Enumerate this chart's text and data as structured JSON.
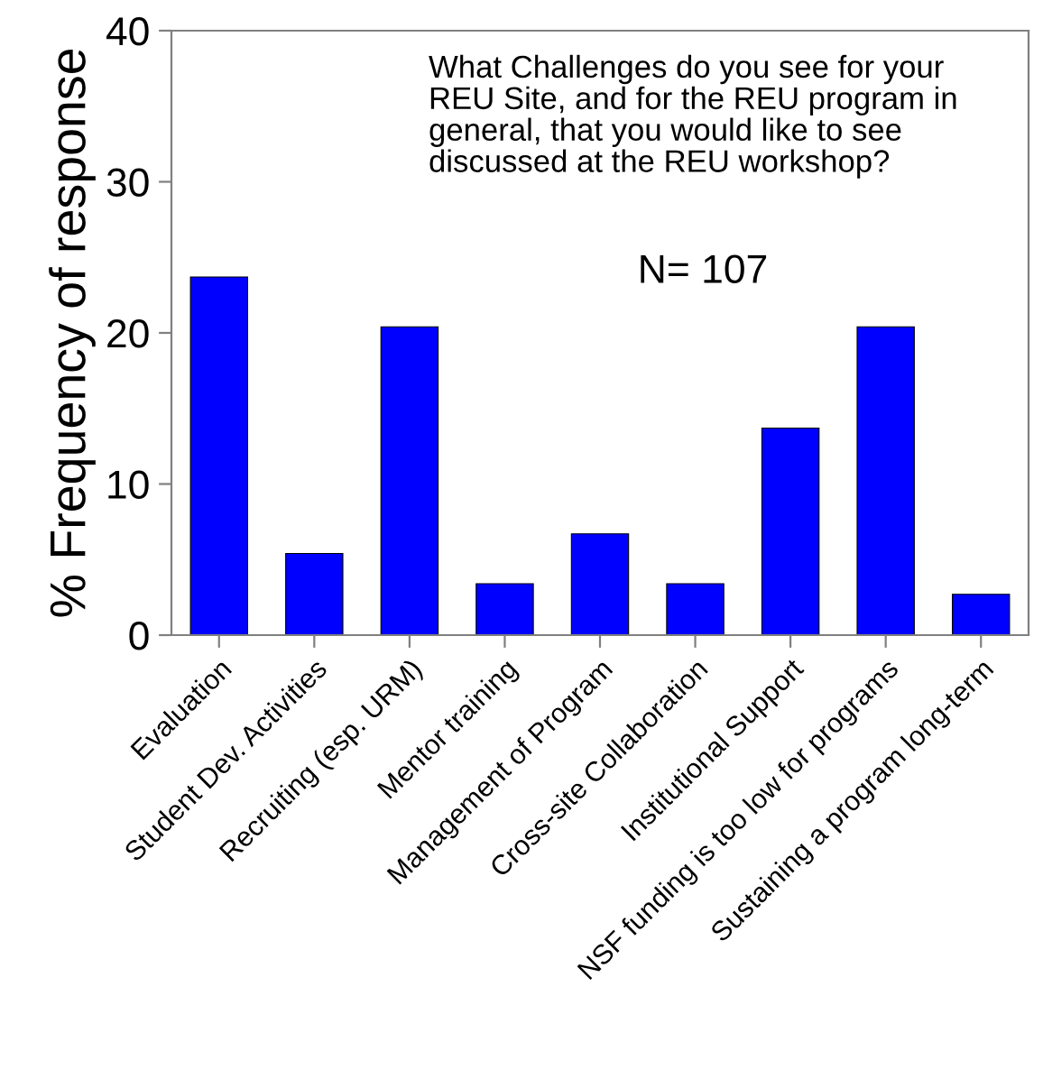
{
  "chart_data": {
    "type": "bar",
    "ylabel": "% Frequency of response",
    "categories": [
      "Evaluation",
      "Student Dev. Activities",
      "Recruiting (esp. URM)",
      "Mentor training",
      "Management of Program",
      "Cross-site Collaboration",
      "Institutional Support",
      "NSF funding is too low for programs",
      "Sustaining a program long-term"
    ],
    "values": [
      23.7,
      5.4,
      20.4,
      3.4,
      6.7,
      3.4,
      13.7,
      20.4,
      2.7
    ],
    "color": "#0000ff",
    "ylim": [
      0,
      40
    ],
    "yticks": [
      0,
      10,
      20,
      30,
      40
    ],
    "grid": false,
    "legend": false,
    "annotations": [
      "What Challenges do you see for your\nREU Site, and for the REU program in\ngeneral, that you would like to see\ndiscussed at the REU workshop?",
      "N= 107"
    ]
  }
}
